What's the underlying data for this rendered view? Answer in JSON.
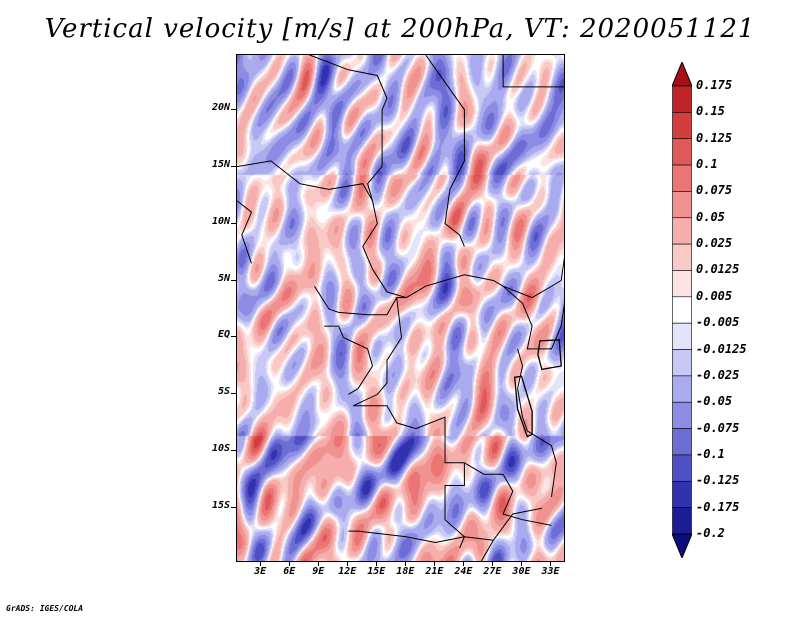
{
  "title": "Vertical velocity [m/s] at 200hPa, VT: 2020051121",
  "credit": "GrADS: IGES/COLA",
  "map": {
    "lat_labels": [
      {
        "label": "20N",
        "lat": 20
      },
      {
        "label": "15N",
        "lat": 15
      },
      {
        "label": "10N",
        "lat": 10
      },
      {
        "label": "5N",
        "lat": 5
      },
      {
        "label": "EQ",
        "lat": 0
      },
      {
        "label": "5S",
        "lat": -5
      },
      {
        "label": "10S",
        "lat": -10
      },
      {
        "label": "15S",
        "lat": -15
      }
    ],
    "lon_labels": [
      {
        "label": "3E",
        "lon": 3
      },
      {
        "label": "6E",
        "lon": 6
      },
      {
        "label": "9E",
        "lon": 9
      },
      {
        "label": "12E",
        "lon": 12
      },
      {
        "label": "15E",
        "lon": 15
      },
      {
        "label": "18E",
        "lon": 18
      },
      {
        "label": "21E",
        "lon": 21
      },
      {
        "label": "24E",
        "lon": 24
      },
      {
        "label": "27E",
        "lon": 27
      },
      {
        "label": "30E",
        "lon": 30
      },
      {
        "label": "33E",
        "lon": 33
      }
    ],
    "lon_range": [
      0.5,
      34.5
    ],
    "lat_range": [
      -19.8,
      24.8
    ]
  },
  "colorbar": {
    "levels": [
      "0.175",
      "0.15",
      "0.125",
      "0.1",
      "0.075",
      "0.05",
      "0.025",
      "0.0125",
      "0.005",
      "-0.005",
      "-0.0125",
      "-0.025",
      "-0.05",
      "-0.075",
      "-0.1",
      "-0.125",
      "-0.175",
      "-0.2"
    ],
    "colors": [
      "#a50f15",
      "#c0242b",
      "#d43d3e",
      "#e0595a",
      "#ea7574",
      "#f09290",
      "#f5aeab",
      "#f9c9c6",
      "#fce3e1",
      "#ffffff",
      "#e3e3fb",
      "#c8c8f5",
      "#aaaaee",
      "#8c8ce4",
      "#6d6dd6",
      "#4f4fc6",
      "#3232b0",
      "#1c1c96",
      "#0c0c7c"
    ],
    "max_label": "0.175",
    "min_label": "-0.2"
  }
}
